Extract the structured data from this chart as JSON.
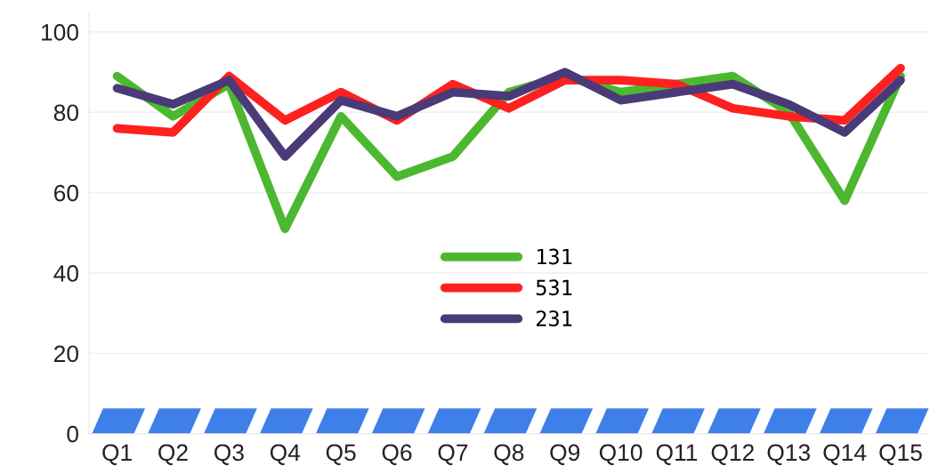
{
  "chart_data": {
    "type": "line",
    "categories": [
      "Q1",
      "Q2",
      "Q3",
      "Q4",
      "Q5",
      "Q6",
      "Q7",
      "Q8",
      "Q9",
      "Q10",
      "Q11",
      "Q12",
      "Q13",
      "Q14",
      "Q15"
    ],
    "series": [
      {
        "name": "131",
        "color": "#4cb830",
        "values": [
          89,
          79,
          87,
          51,
          79,
          64,
          69,
          85,
          89,
          85,
          87,
          89,
          80,
          58,
          89
        ]
      },
      {
        "name": "531",
        "color": "#ff2020",
        "values": [
          76,
          75,
          89,
          78,
          85,
          78,
          87,
          81,
          88,
          88,
          87,
          81,
          79,
          78,
          91
        ]
      },
      {
        "name": "231",
        "color": "#4a3a78",
        "values": [
          86,
          82,
          88,
          69,
          83,
          79,
          85,
          84,
          90,
          83,
          85,
          87,
          82,
          75,
          88
        ]
      }
    ],
    "ylim": [
      0,
      105
    ],
    "yticks": [
      0,
      20,
      40,
      60,
      80,
      100
    ],
    "grid": "y",
    "legend": "bottom",
    "marker": "none",
    "line_style": "solid"
  }
}
